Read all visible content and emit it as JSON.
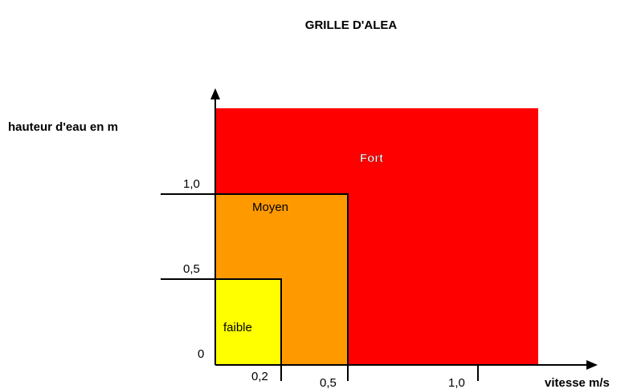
{
  "title": "GRILLE D'ALEA",
  "y_axis_label": "hauteur d'eau en m",
  "x_axis_label": "vitesse m/s",
  "y_ticks": [
    "0",
    "0,5",
    "1,0"
  ],
  "x_ticks": [
    "0,2",
    "0,5",
    "1,0"
  ],
  "zones": [
    {
      "label": "faible"
    },
    {
      "label": "Moyen"
    },
    {
      "label": "Fort"
    }
  ]
}
